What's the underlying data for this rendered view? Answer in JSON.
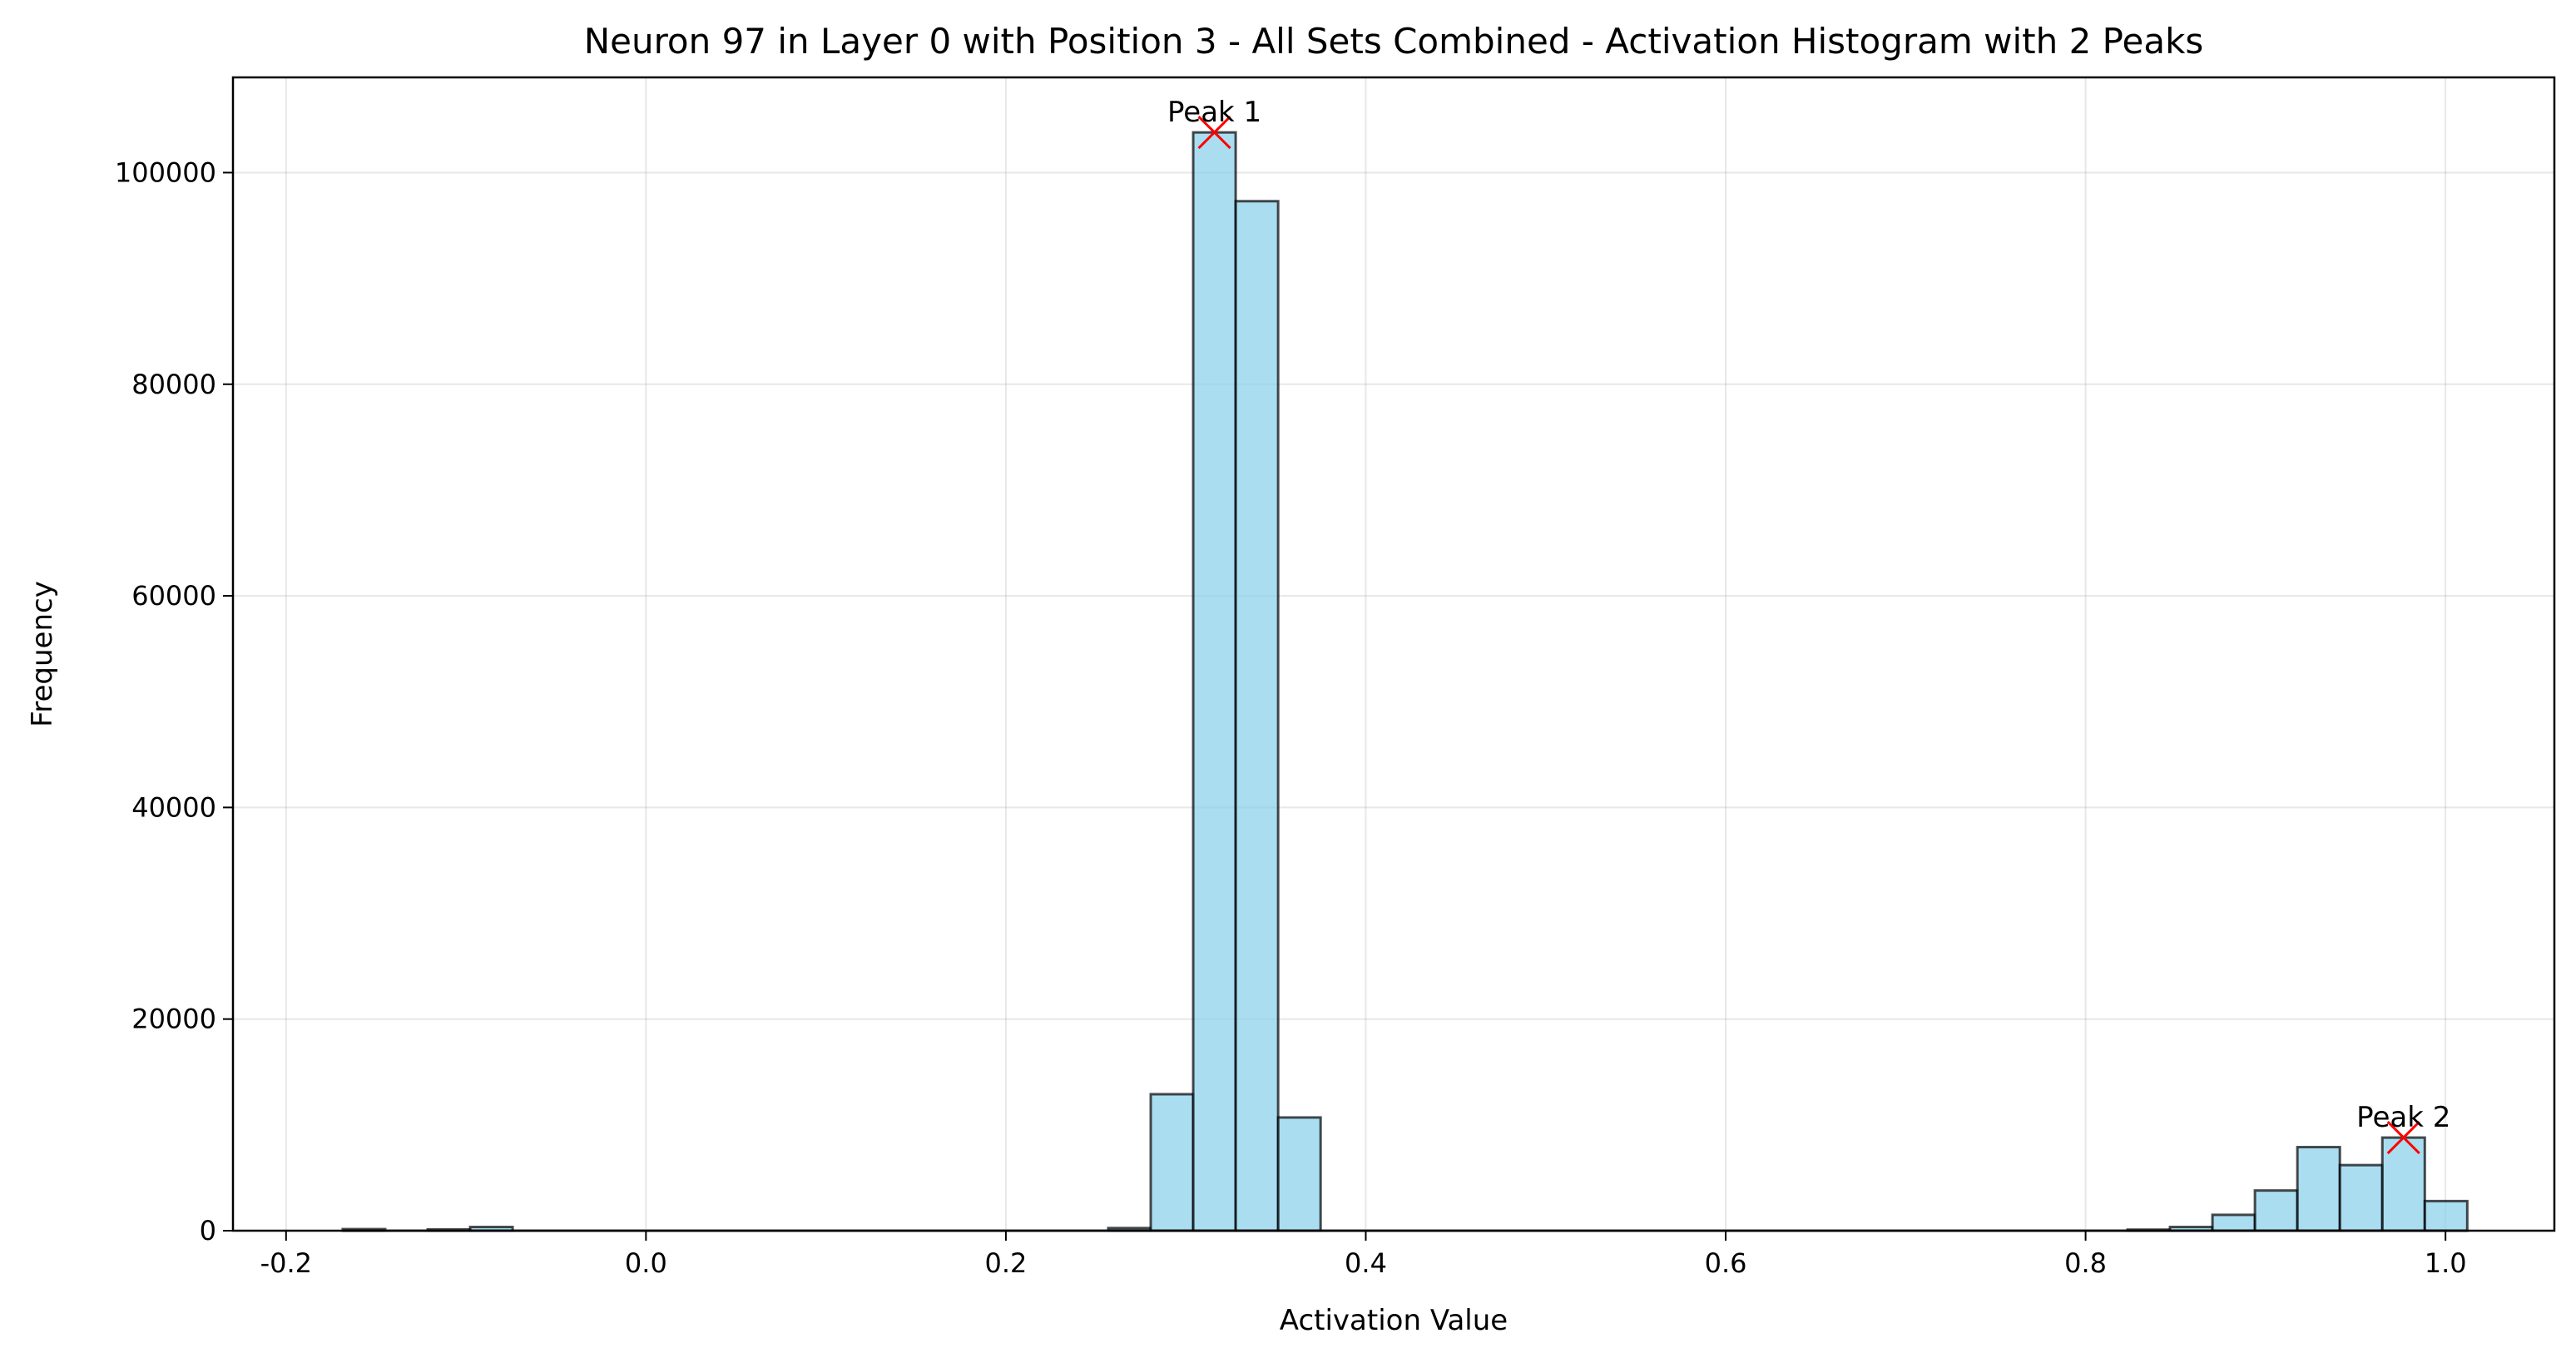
{
  "chart_data": {
    "type": "bar",
    "title": "Neuron 97 in Layer 0 with Position 3 - All Sets Combined - Activation Histogram with 2 Peaks",
    "xlabel": "Activation Value",
    "ylabel": "Frequency",
    "xlim": [
      -0.2295,
      1.0605
    ],
    "ylim": [
      0,
      109000
    ],
    "xticks": [
      -0.2,
      0.0,
      0.2,
      0.4,
      0.6,
      0.8,
      1.0
    ],
    "xtick_labels": [
      "-0.2",
      "0.0",
      "0.2",
      "0.4",
      "0.6",
      "0.8",
      "1.0"
    ],
    "yticks": [
      0,
      20000,
      40000,
      60000,
      80000,
      100000
    ],
    "ytick_labels": [
      "0",
      "20000",
      "40000",
      "60000",
      "80000",
      "100000"
    ],
    "grid": true,
    "bar_color": "#87ceeb",
    "bar_edge_color": "#000000",
    "bins": [
      {
        "x0": -0.1685,
        "x1": -0.1449,
        "value": 150
      },
      {
        "x0": -0.1449,
        "x1": -0.1213,
        "value": 0
      },
      {
        "x0": -0.1213,
        "x1": -0.0977,
        "value": 120
      },
      {
        "x0": -0.0977,
        "x1": -0.0741,
        "value": 350
      },
      {
        "x0": 0.2333,
        "x1": 0.2569,
        "value": 0
      },
      {
        "x0": 0.2569,
        "x1": 0.2805,
        "value": 250
      },
      {
        "x0": 0.2805,
        "x1": 0.3041,
        "value": 12900
      },
      {
        "x0": 0.3041,
        "x1": 0.3277,
        "value": 103800
      },
      {
        "x0": 0.3277,
        "x1": 0.3513,
        "value": 97300
      },
      {
        "x0": 0.3513,
        "x1": 0.3749,
        "value": 10700
      },
      {
        "x0": 0.8233,
        "x1": 0.8469,
        "value": 100
      },
      {
        "x0": 0.8469,
        "x1": 0.8705,
        "value": 350
      },
      {
        "x0": 0.8705,
        "x1": 0.8941,
        "value": 1500
      },
      {
        "x0": 0.8941,
        "x1": 0.9177,
        "value": 3800
      },
      {
        "x0": 0.9177,
        "x1": 0.9413,
        "value": 7900
      },
      {
        "x0": 0.9413,
        "x1": 0.9649,
        "value": 6200
      },
      {
        "x0": 0.9649,
        "x1": 0.9885,
        "value": 8800
      },
      {
        "x0": 0.9885,
        "x1": 1.0121,
        "value": 2800
      }
    ],
    "baseline": {
      "x0": -0.1685,
      "x1": 1.0121
    },
    "peaks": [
      {
        "label": "Peak 1",
        "x": 0.3159,
        "y": 103800
      },
      {
        "label": "Peak 2",
        "x": 0.9767,
        "y": 8800
      }
    ],
    "peak_marker_color": "#ff0000"
  }
}
